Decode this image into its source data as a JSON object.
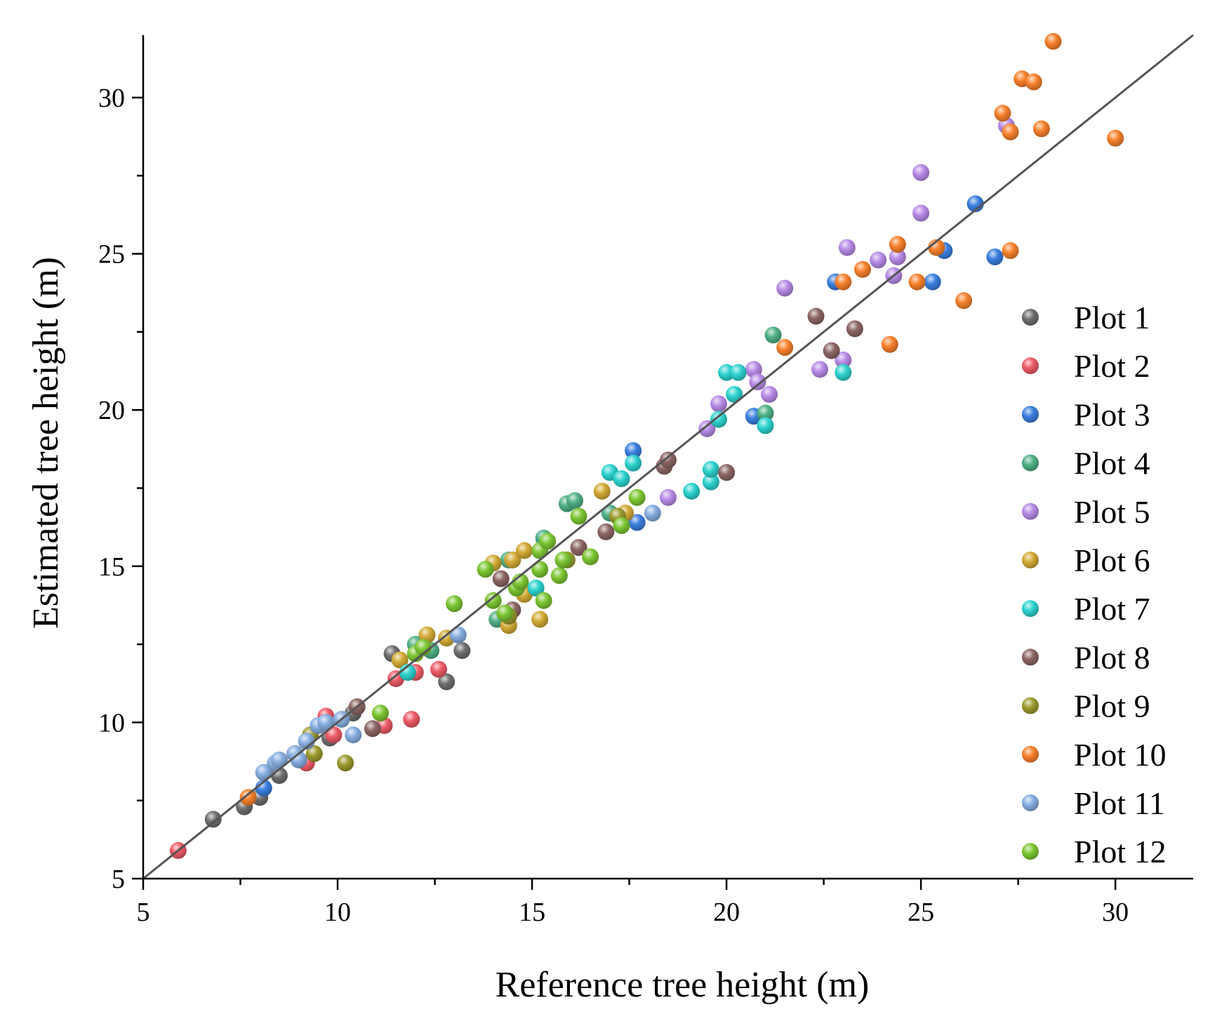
{
  "chart_data": {
    "type": "scatter",
    "xlabel": "Reference tree height (m)",
    "ylabel": "Estimated tree height (m)",
    "xlim": [
      5,
      32
    ],
    "ylim": [
      5,
      32
    ],
    "x_ticks": [
      5,
      10,
      15,
      20,
      25,
      30
    ],
    "y_ticks": [
      5,
      10,
      15,
      20,
      25,
      30
    ],
    "x_tick_labels": [
      "5",
      "10",
      "15",
      "20",
      "25",
      "30"
    ],
    "y_tick_labels": [
      "5",
      "10",
      "15",
      "20",
      "25",
      "30"
    ],
    "reference_line": "1:1",
    "grid": false,
    "legend_position": "right",
    "series": [
      {
        "name": "Plot 1",
        "color": "#6e6e6e",
        "points": [
          [
            6.8,
            6.9
          ],
          [
            7.6,
            7.3
          ],
          [
            8.0,
            7.6
          ],
          [
            8.5,
            8.3
          ],
          [
            11.4,
            12.2
          ],
          [
            12.8,
            11.3
          ],
          [
            13.2,
            12.3
          ],
          [
            9.8,
            9.5
          ],
          [
            10.4,
            10.3
          ]
        ]
      },
      {
        "name": "Plot 2",
        "color": "#ee5b66",
        "points": [
          [
            5.9,
            5.9
          ],
          [
            9.2,
            8.7
          ],
          [
            9.7,
            10.2
          ],
          [
            11.2,
            9.9
          ],
          [
            11.5,
            11.4
          ],
          [
            11.9,
            10.1
          ],
          [
            12.0,
            11.6
          ],
          [
            12.6,
            11.7
          ],
          [
            8.9,
            9.0
          ],
          [
            9.9,
            9.6
          ]
        ]
      },
      {
        "name": "Plot 3",
        "color": "#3a7fe0",
        "points": [
          [
            8.1,
            7.9
          ],
          [
            17.6,
            18.7
          ],
          [
            17.7,
            16.4
          ],
          [
            20.7,
            19.8
          ],
          [
            22.8,
            24.1
          ],
          [
            25.3,
            24.1
          ],
          [
            25.6,
            25.1
          ],
          [
            26.4,
            26.6
          ],
          [
            26.9,
            24.9
          ]
        ]
      },
      {
        "name": "Plot 4",
        "color": "#4fb085",
        "points": [
          [
            12.0,
            12.5
          ],
          [
            12.4,
            12.3
          ],
          [
            14.1,
            13.3
          ],
          [
            14.4,
            15.2
          ],
          [
            15.3,
            15.9
          ],
          [
            15.9,
            17.0
          ],
          [
            16.1,
            17.1
          ],
          [
            17.0,
            16.7
          ],
          [
            21.0,
            19.9
          ],
          [
            21.2,
            22.4
          ]
        ]
      },
      {
        "name": "Plot 5",
        "color": "#b88be8",
        "points": [
          [
            18.5,
            17.2
          ],
          [
            19.5,
            19.4
          ],
          [
            19.8,
            20.2
          ],
          [
            20.7,
            21.3
          ],
          [
            20.8,
            20.9
          ],
          [
            21.1,
            20.5
          ],
          [
            21.5,
            23.9
          ],
          [
            22.4,
            21.3
          ],
          [
            23.0,
            21.6
          ],
          [
            23.1,
            25.2
          ],
          [
            23.9,
            24.8
          ],
          [
            24.3,
            24.3
          ],
          [
            24.4,
            24.9
          ],
          [
            25.0,
            26.3
          ],
          [
            25.0,
            27.6
          ],
          [
            27.2,
            29.1
          ]
        ]
      },
      {
        "name": "Plot 6",
        "color": "#d3aa35",
        "points": [
          [
            11.6,
            12.0
          ],
          [
            12.3,
            12.8
          ],
          [
            12.8,
            12.7
          ],
          [
            14.0,
            15.1
          ],
          [
            14.4,
            13.1
          ],
          [
            14.5,
            15.2
          ],
          [
            14.8,
            15.5
          ],
          [
            15.2,
            13.3
          ],
          [
            16.8,
            17.4
          ],
          [
            17.4,
            16.7
          ],
          [
            14.8,
            14.1
          ]
        ]
      },
      {
        "name": "Plot 7",
        "color": "#2dd3cf",
        "points": [
          [
            11.8,
            11.6
          ],
          [
            15.1,
            14.3
          ],
          [
            17.0,
            18.0
          ],
          [
            17.3,
            17.8
          ],
          [
            17.6,
            18.3
          ],
          [
            19.1,
            17.4
          ],
          [
            19.6,
            17.7
          ],
          [
            19.6,
            18.1
          ],
          [
            19.8,
            19.7
          ],
          [
            20.0,
            21.2
          ],
          [
            20.2,
            20.5
          ],
          [
            20.3,
            21.2
          ],
          [
            21.0,
            19.5
          ],
          [
            23.0,
            21.2
          ]
        ]
      },
      {
        "name": "Plot 8",
        "color": "#8c6563",
        "points": [
          [
            10.5,
            10.5
          ],
          [
            10.9,
            9.8
          ],
          [
            14.2,
            14.6
          ],
          [
            14.5,
            13.6
          ],
          [
            16.2,
            15.6
          ],
          [
            16.9,
            16.1
          ],
          [
            18.4,
            18.2
          ],
          [
            18.5,
            18.4
          ],
          [
            20.0,
            18.0
          ],
          [
            22.3,
            23.0
          ],
          [
            22.7,
            21.9
          ],
          [
            23.3,
            22.6
          ]
        ]
      },
      {
        "name": "Plot 9",
        "color": "#9c9a2d",
        "points": [
          [
            9.3,
            9.6
          ],
          [
            9.4,
            9.0
          ],
          [
            10.2,
            8.7
          ],
          [
            14.4,
            13.4
          ],
          [
            15.9,
            15.2
          ],
          [
            17.2,
            16.6
          ]
        ]
      },
      {
        "name": "Plot 10",
        "color": "#f8812c",
        "points": [
          [
            7.7,
            7.6
          ],
          [
            21.5,
            22.0
          ],
          [
            23.0,
            24.1
          ],
          [
            23.5,
            24.5
          ],
          [
            24.2,
            22.1
          ],
          [
            24.4,
            25.3
          ],
          [
            24.9,
            24.1
          ],
          [
            25.4,
            25.2
          ],
          [
            26.1,
            23.5
          ],
          [
            27.1,
            29.5
          ],
          [
            27.3,
            28.9
          ],
          [
            27.3,
            25.1
          ],
          [
            27.6,
            30.6
          ],
          [
            27.9,
            30.5
          ],
          [
            28.1,
            29.0
          ],
          [
            28.4,
            31.8
          ],
          [
            30.0,
            28.7
          ]
        ]
      },
      {
        "name": "Plot 11",
        "color": "#86aee0",
        "points": [
          [
            8.1,
            8.4
          ],
          [
            8.4,
            8.7
          ],
          [
            8.5,
            8.8
          ],
          [
            8.9,
            9.0
          ],
          [
            9.0,
            8.8
          ],
          [
            9.2,
            9.4
          ],
          [
            9.5,
            9.9
          ],
          [
            9.7,
            10.0
          ],
          [
            10.1,
            10.1
          ],
          [
            10.4,
            9.6
          ],
          [
            13.1,
            12.8
          ],
          [
            18.1,
            16.7
          ]
        ]
      },
      {
        "name": "Plot 12",
        "color": "#7cc632",
        "points": [
          [
            11.1,
            10.3
          ],
          [
            12.0,
            12.2
          ],
          [
            12.2,
            12.4
          ],
          [
            13.0,
            13.8
          ],
          [
            13.8,
            14.9
          ],
          [
            14.0,
            13.9
          ],
          [
            14.3,
            13.5
          ],
          [
            14.6,
            14.3
          ],
          [
            14.7,
            14.5
          ],
          [
            15.2,
            14.9
          ],
          [
            15.2,
            15.5
          ],
          [
            15.3,
            13.9
          ],
          [
            15.4,
            15.8
          ],
          [
            15.7,
            14.7
          ],
          [
            15.8,
            15.2
          ],
          [
            16.2,
            16.6
          ],
          [
            16.5,
            15.3
          ],
          [
            17.3,
            16.3
          ],
          [
            17.7,
            17.2
          ]
        ]
      }
    ]
  }
}
